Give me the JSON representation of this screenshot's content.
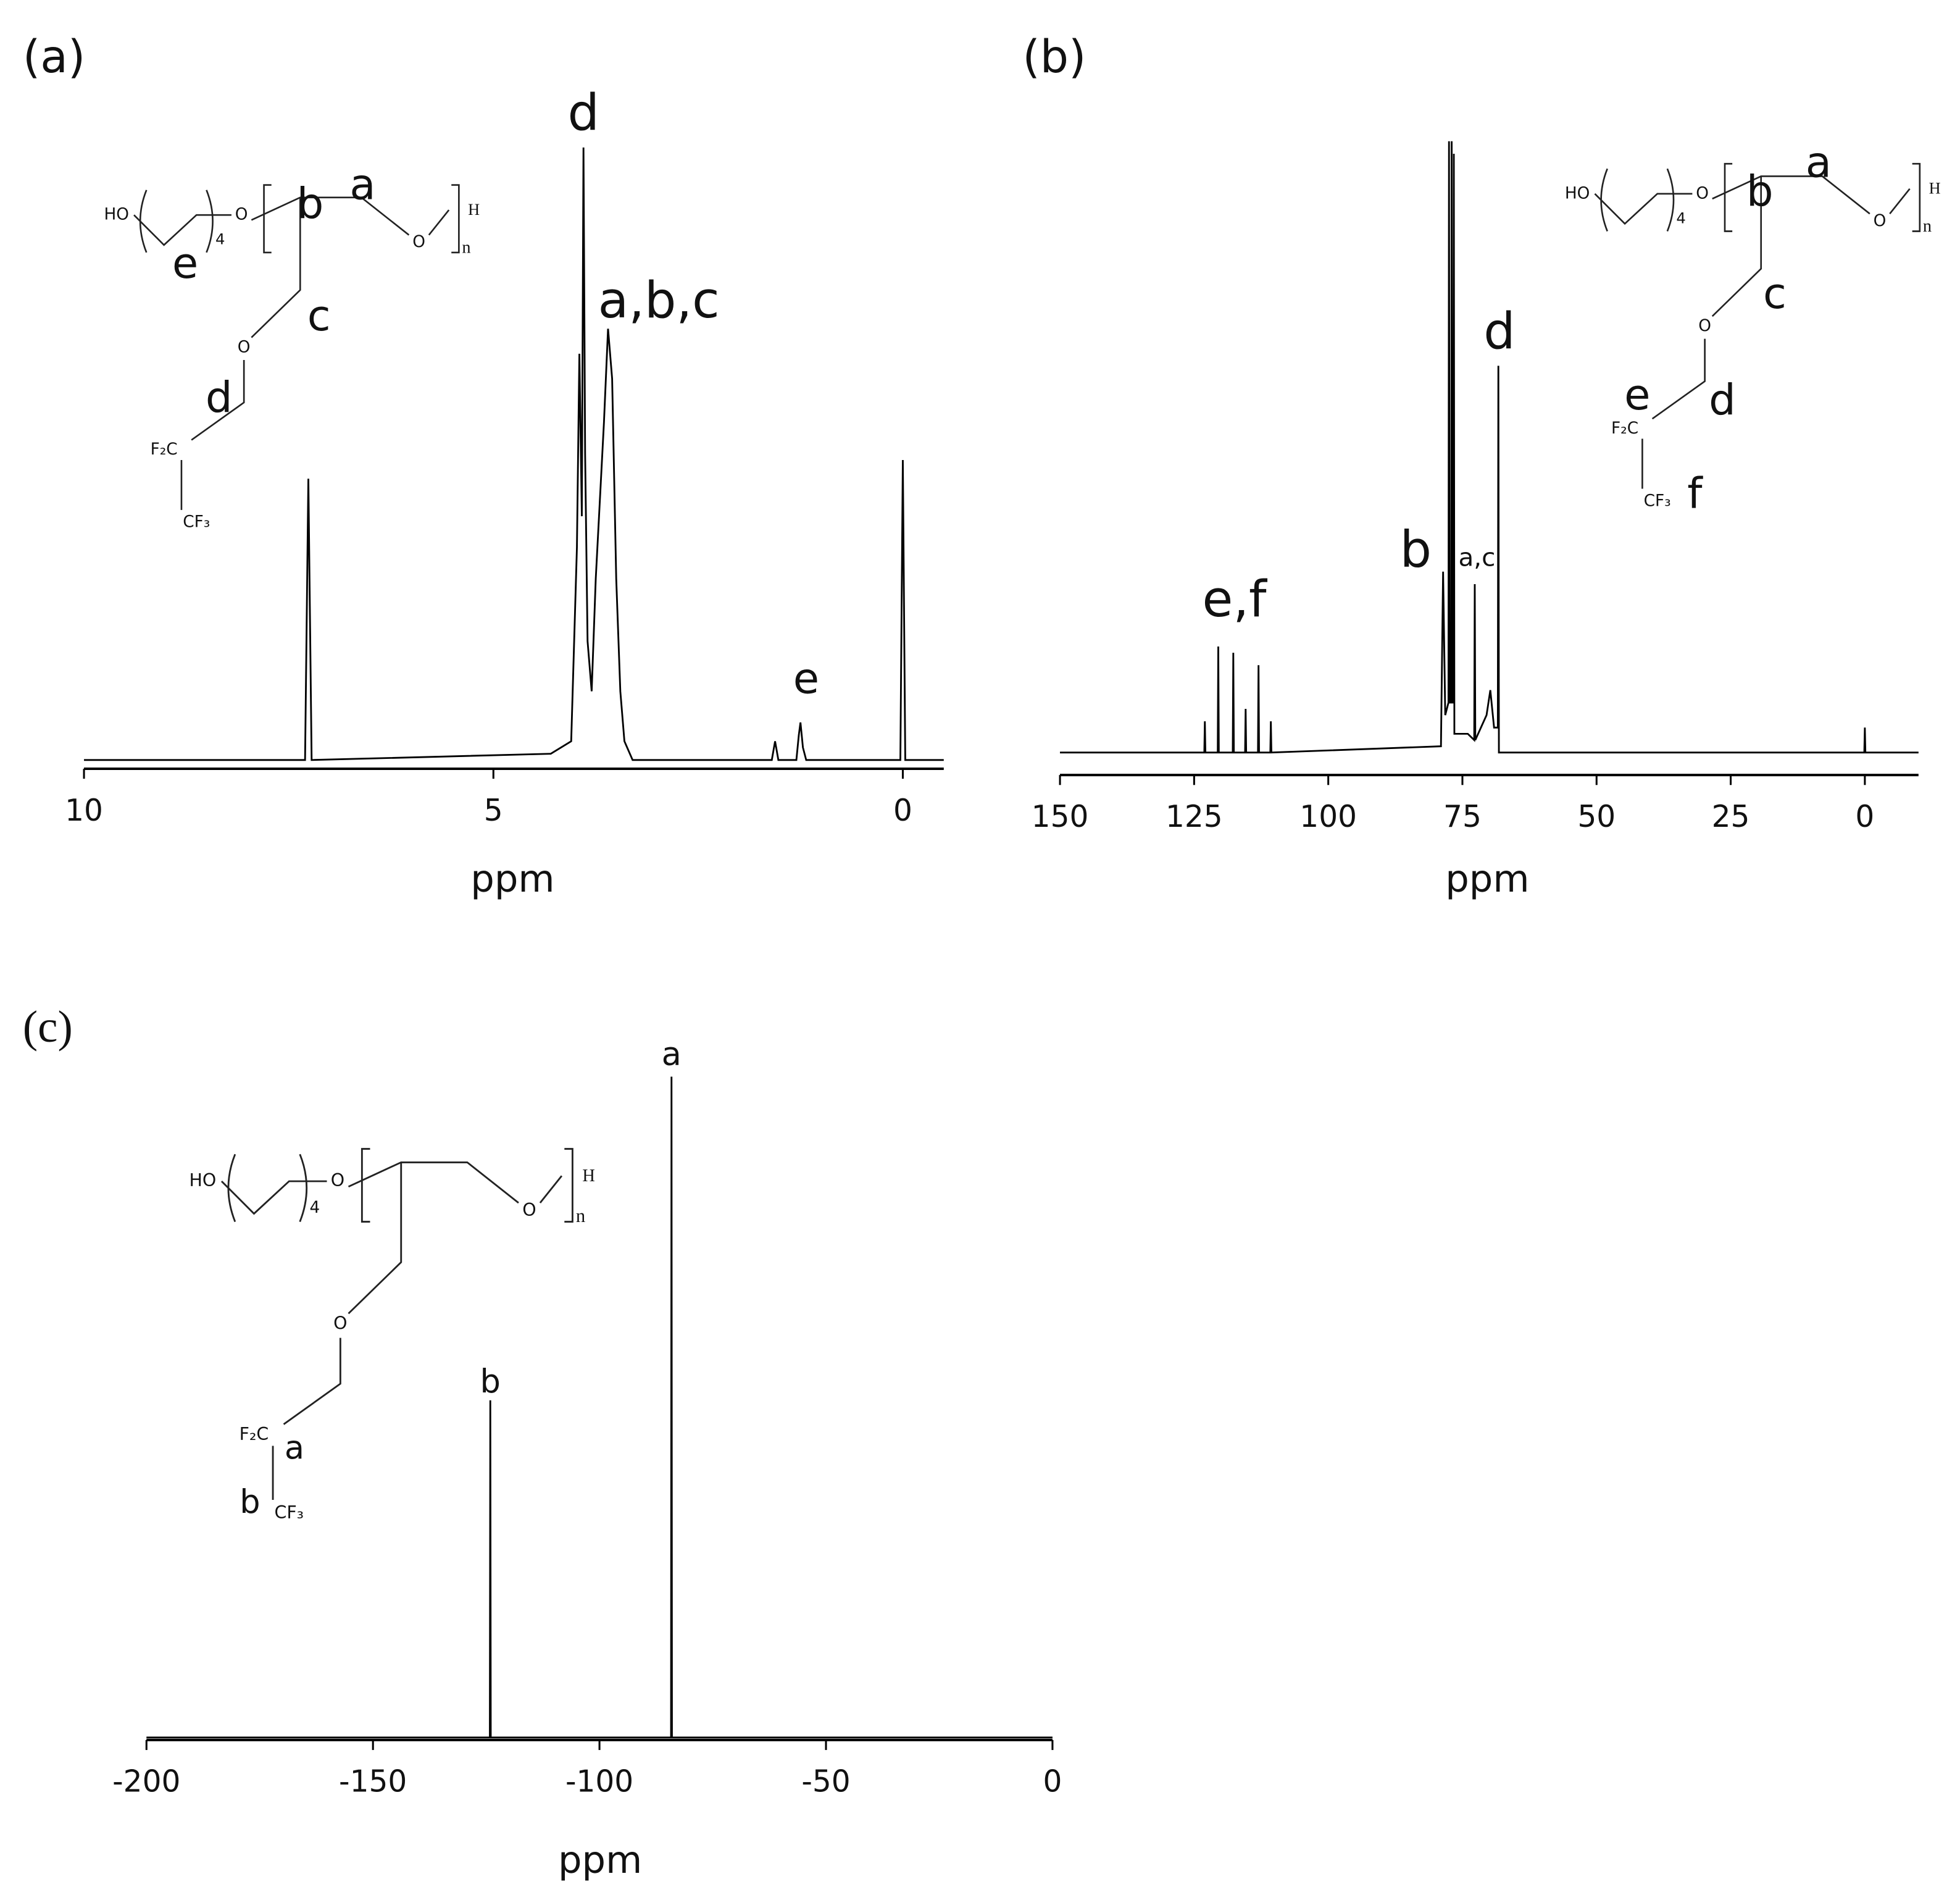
{
  "chart_data": [
    {
      "type": "line",
      "panel_label": "(a)",
      "x_label": "ppm",
      "xlim": [
        10,
        -0.5
      ],
      "xticks": [
        10,
        5,
        0
      ],
      "ylim": [
        0,
        100
      ],
      "color": "#000000",
      "x": [
        10,
        7.3,
        7.26,
        7.22,
        4.3,
        4.05,
        3.98,
        3.95,
        3.92,
        3.9,
        3.88,
        3.85,
        3.8,
        3.75,
        3.65,
        3.6,
        3.55,
        3.5,
        3.45,
        3.4,
        3.3,
        1.6,
        1.56,
        1.52,
        1.3,
        1.27,
        1.25,
        1.22,
        1.18,
        0.03,
        0,
        -0.03,
        -0.5
      ],
      "values": [
        1,
        1,
        46,
        1,
        2,
        4,
        35,
        66,
        40,
        99,
        50,
        20,
        12,
        30,
        55,
        70,
        62,
        30,
        12,
        4,
        1,
        1,
        4,
        1,
        1,
        5,
        7,
        3,
        1,
        1,
        49,
        1,
        1
      ],
      "annotations": [
        {
          "text": "d",
          "x": 3.9,
          "y": 104
        },
        {
          "text": "a,b,c",
          "x": 2.98,
          "y": 74
        },
        {
          "text": "e",
          "x": 1.18,
          "y": 13.6
        }
      ],
      "structure": {
        "atoms": [
          "HO",
          "4",
          "O",
          "O",
          "H",
          "n",
          "O",
          "F₂C",
          "CF₃"
        ],
        "labels": [
          "e",
          "b",
          "a",
          "c",
          "d"
        ]
      }
    },
    {
      "type": "line",
      "panel_label": "(b)",
      "x_label": "ppm",
      "xlim": [
        150,
        -10
      ],
      "xticks": [
        150,
        125,
        100,
        75,
        50,
        25,
        0
      ],
      "ylim": [
        0,
        100
      ],
      "color": "#000000",
      "x": [
        150,
        123.1,
        123,
        122.9,
        120.6,
        120.5,
        120.4,
        117.8,
        117.7,
        117.6,
        115.5,
        115.4,
        115.3,
        113.1,
        113,
        112.9,
        110.8,
        110.7,
        110.6,
        79,
        78.6,
        78.2,
        77.6,
        77.5,
        77.4,
        77.1,
        77,
        76.9,
        76.7,
        76.6,
        76.5,
        74,
        72.8,
        72.7,
        72.6,
        70.5,
        69.8,
        69.1,
        68.4,
        68.3,
        68.2,
        0.1,
        0,
        -0.1,
        -10
      ],
      "values": [
        2,
        2,
        7,
        2,
        2,
        19,
        2,
        2,
        18,
        2,
        2,
        9,
        2,
        2,
        16,
        2,
        2,
        7,
        2,
        3,
        31,
        8,
        10,
        100,
        10,
        10,
        100,
        10,
        10,
        98,
        5,
        5,
        4,
        29,
        4,
        8,
        12,
        6,
        6,
        64,
        2,
        2,
        6,
        2,
        2
      ],
      "annotations": [
        {
          "text": "d",
          "x": 68.1,
          "y": 69
        },
        {
          "text": "b",
          "x": 83.7,
          "y": 34
        },
        {
          "text": "a,c",
          "x": 72.3,
          "y": 33
        },
        {
          "text": "e,f",
          "x": 117.5,
          "y": 26
        }
      ],
      "structure": {
        "atoms": [
          "HO",
          "4",
          "O",
          "O",
          "H",
          "n",
          "O",
          "F₂C",
          "CF₃"
        ],
        "labels": [
          "b",
          "a",
          "c",
          "e",
          "d",
          "f"
        ]
      }
    },
    {
      "type": "line",
      "panel_label": "(c)",
      "x_label": "ppm",
      "xlim": [
        -200,
        0
      ],
      "xticks": [
        -200,
        -150,
        -100,
        -50,
        0
      ],
      "ylim": [
        0,
        100
      ],
      "color": "#000000",
      "x": [
        -200,
        -124.2,
        -124.1,
        -124,
        -84.2,
        -84.1,
        -84,
        0
      ],
      "values": [
        0,
        0,
        49.5,
        0,
        0,
        97,
        0,
        0
      ],
      "annotations": [
        {
          "text": "a",
          "x": -84.1,
          "y": 100
        },
        {
          "text": "b",
          "x": -124.1,
          "y": 52
        }
      ],
      "structure": {
        "atoms": [
          "HO",
          "4",
          "O",
          "O",
          "H",
          "n",
          "O",
          "F₂C",
          "CF₃"
        ],
        "labels": [
          "a",
          "b"
        ]
      }
    }
  ]
}
